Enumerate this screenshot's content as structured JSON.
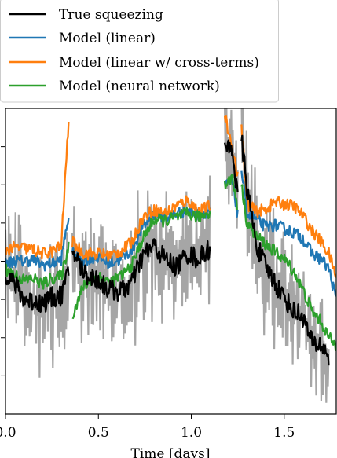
{
  "chart_data": {
    "type": "line",
    "title": "",
    "xlabel": "Time [days]",
    "ylabel": "",
    "xlim": [
      0,
      1.78
    ],
    "ylim": [
      0,
      8
    ],
    "x_ticks": [
      0.0,
      0.5,
      1.0,
      1.5
    ],
    "x_tick_labels": [
      "0.0",
      "0.5",
      "1.0",
      "1.5"
    ],
    "y_ticks": [
      1,
      2,
      3,
      4,
      5,
      6,
      7
    ],
    "grid": false,
    "legend_position": "top-left",
    "legend": [
      {
        "label": "True squeezing",
        "color": "#000000"
      },
      {
        "label": "Model (linear)",
        "color": "#1f77b4"
      },
      {
        "label": "Model (linear w/ cross-terms)",
        "color": "#ff7f0e"
      },
      {
        "label": "Model (neural network)",
        "color": "#2ca02c"
      }
    ],
    "background_series": {
      "color": "#a6a6a6"
    },
    "series": [
      {
        "name": "True squeezing",
        "color": "#000000",
        "segments": [
          [
            [
              0.0,
              3.7
            ],
            [
              0.05,
              3.4
            ],
            [
              0.1,
              3.0
            ],
            [
              0.15,
              2.95
            ],
            [
              0.2,
              2.9
            ],
            [
              0.25,
              3.05
            ],
            [
              0.3,
              3.1
            ],
            [
              0.34,
              3.7
            ]
          ],
          [
            [
              0.36,
              4.3
            ],
            [
              0.42,
              3.7
            ],
            [
              0.5,
              3.5
            ],
            [
              0.56,
              3.25
            ],
            [
              0.62,
              3.2
            ],
            [
              0.68,
              3.45
            ],
            [
              0.74,
              4.15
            ],
            [
              0.8,
              4.4
            ],
            [
              0.86,
              4.05
            ],
            [
              0.92,
              3.85
            ],
            [
              0.98,
              4.2
            ],
            [
              1.04,
              4.05
            ],
            [
              1.1,
              4.35
            ]
          ],
          [
            [
              1.18,
              6.9
            ],
            [
              1.22,
              7.0
            ],
            [
              1.25,
              5.6
            ]
          ],
          [
            [
              1.27,
              7.2
            ],
            [
              1.3,
              5.9
            ],
            [
              1.35,
              4.45
            ],
            [
              1.4,
              3.85
            ],
            [
              1.45,
              3.45
            ],
            [
              1.5,
              3.05
            ],
            [
              1.55,
              2.7
            ],
            [
              1.6,
              2.55
            ],
            [
              1.65,
              1.85
            ],
            [
              1.7,
              1.8
            ],
            [
              1.74,
              1.5
            ]
          ]
        ]
      },
      {
        "name": "Model (linear)",
        "color": "#1f77b4",
        "segments": [
          [
            [
              0.0,
              3.95
            ],
            [
              0.05,
              4.0
            ],
            [
              0.1,
              4.0
            ],
            [
              0.15,
              4.05
            ],
            [
              0.2,
              3.9
            ],
            [
              0.25,
              3.95
            ],
            [
              0.3,
              4.05
            ],
            [
              0.34,
              5.2
            ]
          ],
          [
            [
              0.36,
              4.2
            ],
            [
              0.42,
              4.05
            ],
            [
              0.5,
              4.1
            ],
            [
              0.56,
              3.95
            ],
            [
              0.62,
              4.05
            ],
            [
              0.68,
              4.3
            ],
            [
              0.74,
              4.9
            ],
            [
              0.8,
              5.25
            ],
            [
              0.86,
              5.15
            ],
            [
              0.92,
              5.25
            ],
            [
              0.98,
              5.35
            ],
            [
              1.04,
              5.2
            ],
            [
              1.1,
              5.35
            ]
          ],
          [
            [
              1.18,
              5.95
            ],
            [
              1.22,
              6.1
            ],
            [
              1.25,
              5.2
            ]
          ],
          [
            [
              1.27,
              6.4
            ],
            [
              1.3,
              5.25
            ],
            [
              1.35,
              5.1
            ],
            [
              1.4,
              4.9
            ],
            [
              1.45,
              4.95
            ],
            [
              1.5,
              4.85
            ],
            [
              1.55,
              4.75
            ],
            [
              1.6,
              4.6
            ],
            [
              1.65,
              4.2
            ],
            [
              1.7,
              4.05
            ],
            [
              1.74,
              3.8
            ],
            [
              1.78,
              3.0
            ]
          ]
        ]
      },
      {
        "name": "Model (linear w/ cross-terms)",
        "color": "#ff7f0e",
        "segments": [
          [
            [
              0.0,
              4.3
            ],
            [
              0.05,
              4.35
            ],
            [
              0.1,
              4.35
            ],
            [
              0.15,
              4.3
            ],
            [
              0.2,
              4.2
            ],
            [
              0.25,
              4.25
            ],
            [
              0.3,
              4.4
            ],
            [
              0.34,
              7.7
            ]
          ],
          [
            [
              0.36,
              4.5
            ],
            [
              0.42,
              4.2
            ],
            [
              0.5,
              4.2
            ],
            [
              0.56,
              4.15
            ],
            [
              0.62,
              4.25
            ],
            [
              0.68,
              4.5
            ],
            [
              0.74,
              5.15
            ],
            [
              0.8,
              5.35
            ],
            [
              0.86,
              5.25
            ],
            [
              0.92,
              5.45
            ],
            [
              0.98,
              5.6
            ],
            [
              1.04,
              5.3
            ],
            [
              1.1,
              5.45
            ]
          ],
          [
            [
              1.18,
              7.8
            ],
            [
              1.22,
              7.0
            ],
            [
              1.25,
              6.2
            ]
          ],
          [
            [
              1.27,
              7.6
            ],
            [
              1.3,
              5.5
            ],
            [
              1.35,
              5.3
            ],
            [
              1.4,
              5.35
            ],
            [
              1.45,
              5.55
            ],
            [
              1.5,
              5.5
            ],
            [
              1.55,
              5.45
            ],
            [
              1.6,
              5.2
            ],
            [
              1.65,
              4.8
            ],
            [
              1.7,
              4.5
            ],
            [
              1.74,
              4.2
            ],
            [
              1.78,
              3.6
            ]
          ]
        ]
      },
      {
        "name": "Model (neural network)",
        "color": "#2ca02c",
        "segments": [
          [
            [
              0.0,
              3.8
            ],
            [
              0.05,
              3.65
            ],
            [
              0.1,
              3.5
            ],
            [
              0.15,
              3.55
            ],
            [
              0.2,
              3.4
            ],
            [
              0.25,
              3.55
            ],
            [
              0.3,
              3.6
            ],
            [
              0.34,
              4.4
            ]
          ],
          [
            [
              0.36,
              2.6
            ],
            [
              0.42,
              3.35
            ],
            [
              0.5,
              3.6
            ],
            [
              0.56,
              3.45
            ],
            [
              0.62,
              3.6
            ],
            [
              0.68,
              3.9
            ],
            [
              0.74,
              4.6
            ],
            [
              0.8,
              5.1
            ],
            [
              0.86,
              5.05
            ],
            [
              0.92,
              5.15
            ],
            [
              0.98,
              5.25
            ],
            [
              1.04,
              5.15
            ],
            [
              1.1,
              5.3
            ]
          ],
          [
            [
              1.18,
              6.0
            ],
            [
              1.22,
              6.2
            ],
            [
              1.25,
              5.4
            ]
          ],
          [
            [
              1.27,
              6.0
            ],
            [
              1.3,
              5.0
            ],
            [
              1.35,
              4.65
            ],
            [
              1.4,
              4.45
            ],
            [
              1.45,
              4.25
            ],
            [
              1.5,
              4.05
            ],
            [
              1.55,
              3.75
            ],
            [
              1.6,
              3.25
            ],
            [
              1.65,
              2.7
            ],
            [
              1.7,
              2.4
            ],
            [
              1.74,
              2.0
            ],
            [
              1.78,
              1.8
            ]
          ]
        ]
      }
    ]
  }
}
